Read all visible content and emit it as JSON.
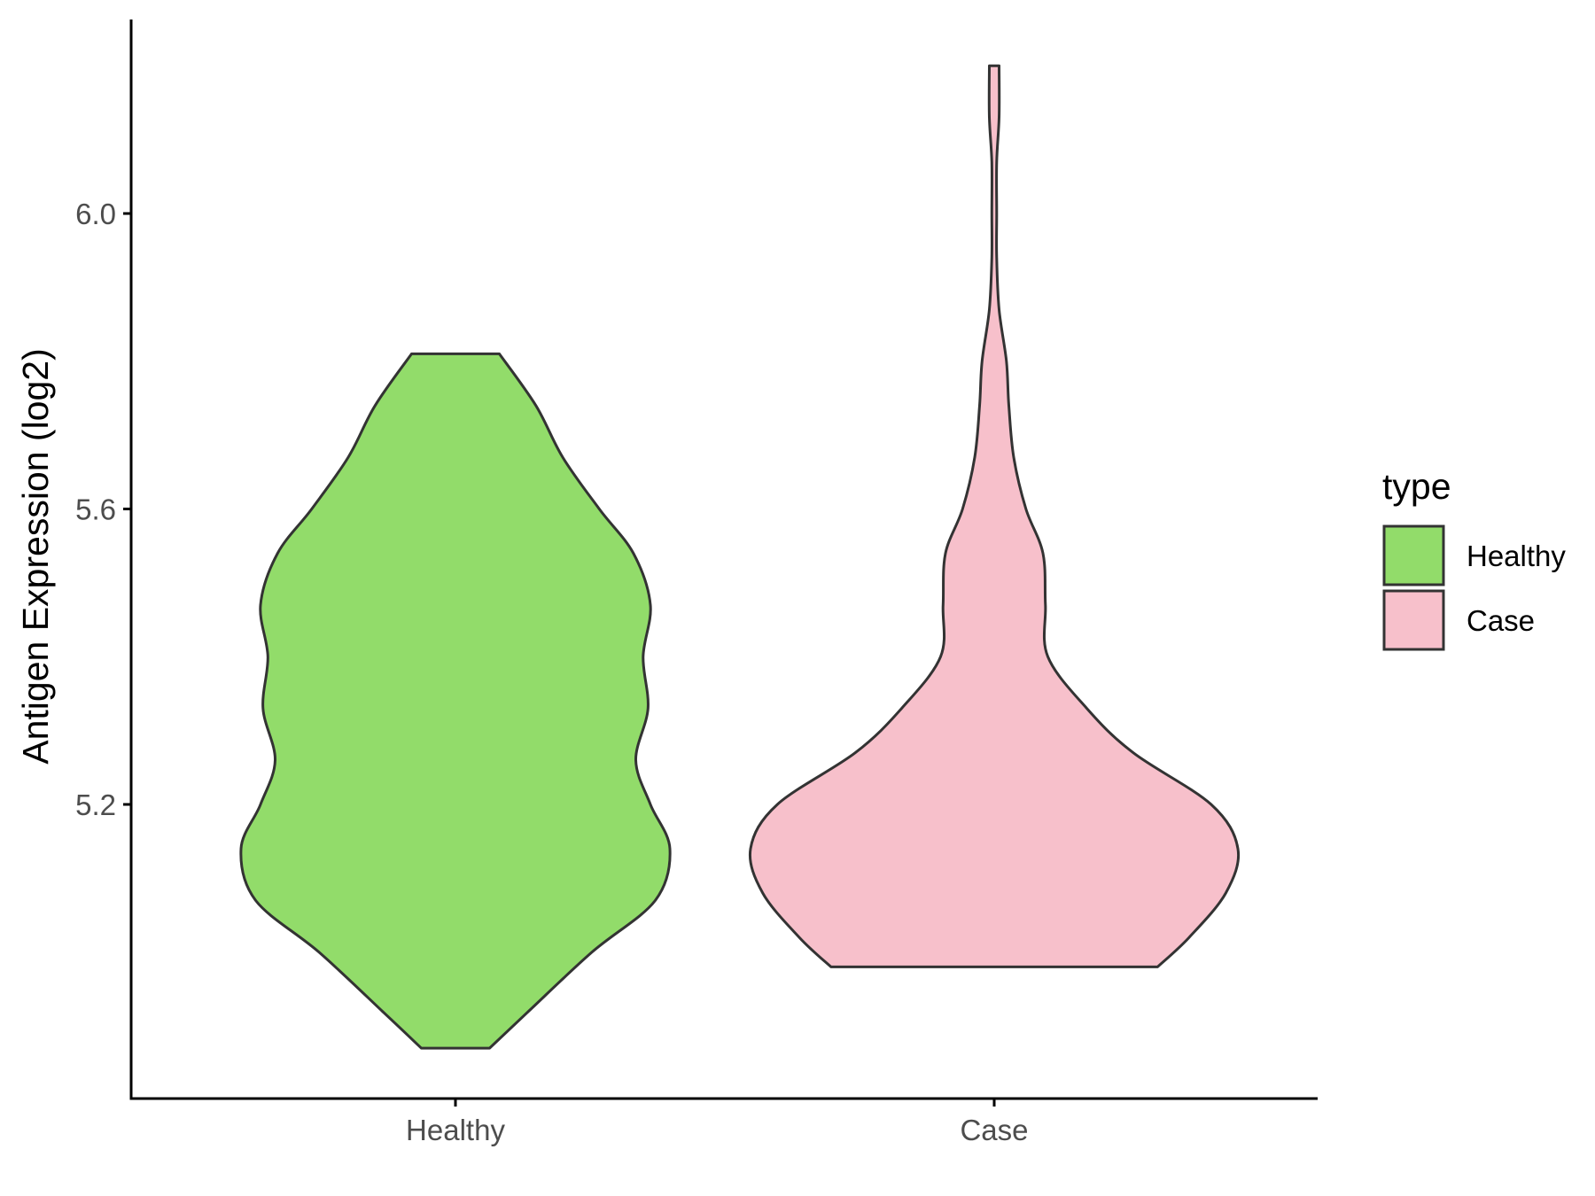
{
  "chart_data": {
    "type": "violin",
    "title": "",
    "xlabel": "",
    "ylabel": "Antigen Expression (log2)",
    "categories": [
      "Healthy",
      "Case"
    ],
    "y_ticks": [
      {
        "value": 5.2,
        "label": "5.2"
      },
      {
        "value": 5.6,
        "label": "5.6"
      },
      {
        "value": 6.0,
        "label": "6.0"
      }
    ],
    "ylim": [
      4.81,
      6.26
    ],
    "grid": false,
    "legend": {
      "title": "type",
      "position": "right",
      "entries": [
        {
          "label": "Healthy",
          "color": "#92DC6A"
        },
        {
          "label": "Case",
          "color": "#F7C0CB"
        }
      ]
    },
    "series": [
      {
        "category": "Healthy",
        "color": "#92DC6A",
        "min": 4.87,
        "max": 5.81,
        "density": [
          [
            4.87,
            0.14
          ],
          [
            4.92,
            0.3
          ],
          [
            5.0,
            0.56
          ],
          [
            5.07,
            0.82
          ],
          [
            5.14,
            0.88
          ],
          [
            5.2,
            0.8
          ],
          [
            5.26,
            0.74
          ],
          [
            5.33,
            0.79
          ],
          [
            5.4,
            0.77
          ],
          [
            5.47,
            0.8
          ],
          [
            5.54,
            0.73
          ],
          [
            5.6,
            0.59
          ],
          [
            5.67,
            0.44
          ],
          [
            5.74,
            0.33
          ],
          [
            5.81,
            0.18
          ]
        ]
      },
      {
        "category": "Case",
        "color": "#F7C0CB",
        "min": 4.98,
        "max": 6.2,
        "density": [
          [
            4.98,
            0.67
          ],
          [
            5.02,
            0.8
          ],
          [
            5.08,
            0.95
          ],
          [
            5.14,
            1.0
          ],
          [
            5.2,
            0.89
          ],
          [
            5.27,
            0.57
          ],
          [
            5.33,
            0.38
          ],
          [
            5.4,
            0.22
          ],
          [
            5.47,
            0.21
          ],
          [
            5.54,
            0.2
          ],
          [
            5.6,
            0.13
          ],
          [
            5.67,
            0.08
          ],
          [
            5.74,
            0.06
          ],
          [
            5.8,
            0.05
          ],
          [
            5.87,
            0.02
          ],
          [
            5.94,
            0.01
          ],
          [
            6.0,
            0.01
          ],
          [
            6.07,
            0.01
          ],
          [
            6.13,
            0.02
          ],
          [
            6.2,
            0.02
          ]
        ]
      }
    ]
  }
}
